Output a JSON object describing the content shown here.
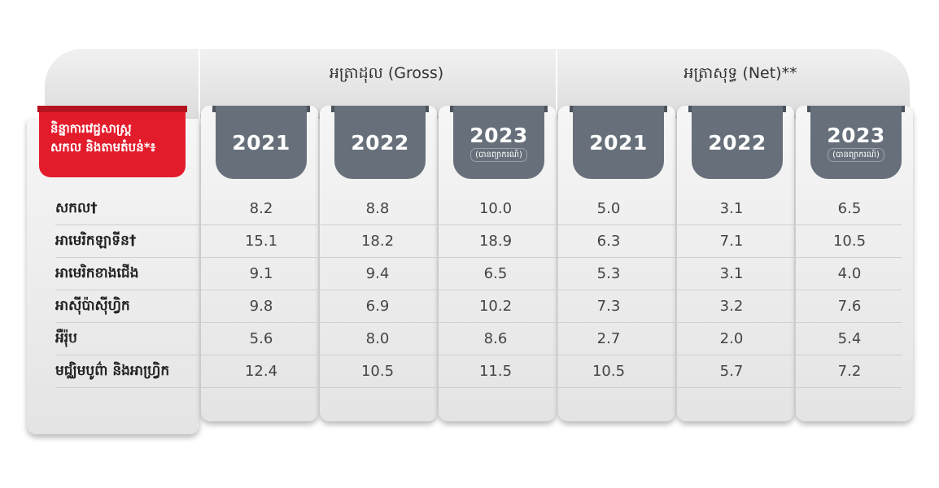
{
  "groups": {
    "gross": "អត្រាដុល (Gross)",
    "net": "អត្រាសុទ្ធ (Net)**"
  },
  "region_header": {
    "line1": "និន្នាការវេជ្ជសាស្ត្រ",
    "line2": "សកល និងតាមតំបន់*៖"
  },
  "columns": [
    {
      "year": "2021",
      "note": ""
    },
    {
      "year": "2022",
      "note": ""
    },
    {
      "year": "2023",
      "note": "(បានព្យាករណ៍)"
    },
    {
      "year": "2021",
      "note": ""
    },
    {
      "year": "2022",
      "note": ""
    },
    {
      "year": "2023",
      "note": "(បានព្យាករណ៍)"
    }
  ],
  "rows": [
    {
      "label": "សកល†",
      "values": [
        "8.2",
        "8.8",
        "10.0",
        "5.0",
        "3.1",
        "6.5"
      ]
    },
    {
      "label": "អាមេរិកឡាទីន†",
      "values": [
        "15.1",
        "18.2",
        "18.9",
        "6.3",
        "7.1",
        "10.5"
      ]
    },
    {
      "label": "អាមេរិកខាងជើង",
      "values": [
        "9.1",
        "9.4",
        "6.5",
        "5.3",
        "3.1",
        "4.0"
      ]
    },
    {
      "label": "អាស៊ីប៉ាស៊ីហ្វិក",
      "values": [
        "9.8",
        "6.9",
        "10.2",
        "7.3",
        "3.2",
        "7.6"
      ]
    },
    {
      "label": "អឺរ៉ុប",
      "values": [
        "5.6",
        "8.0",
        "8.6",
        "2.7",
        "2.0",
        "5.4"
      ]
    },
    {
      "label": "មជ្ឈិមបូព៌ា និងអាហ្វ្រិក",
      "values": [
        "12.4",
        "10.5",
        "11.5",
        "10.5",
        "5.7",
        "7.2"
      ]
    }
  ],
  "colors": {
    "accent_red": "#e31c2c",
    "tab_gray": "#67707a"
  }
}
